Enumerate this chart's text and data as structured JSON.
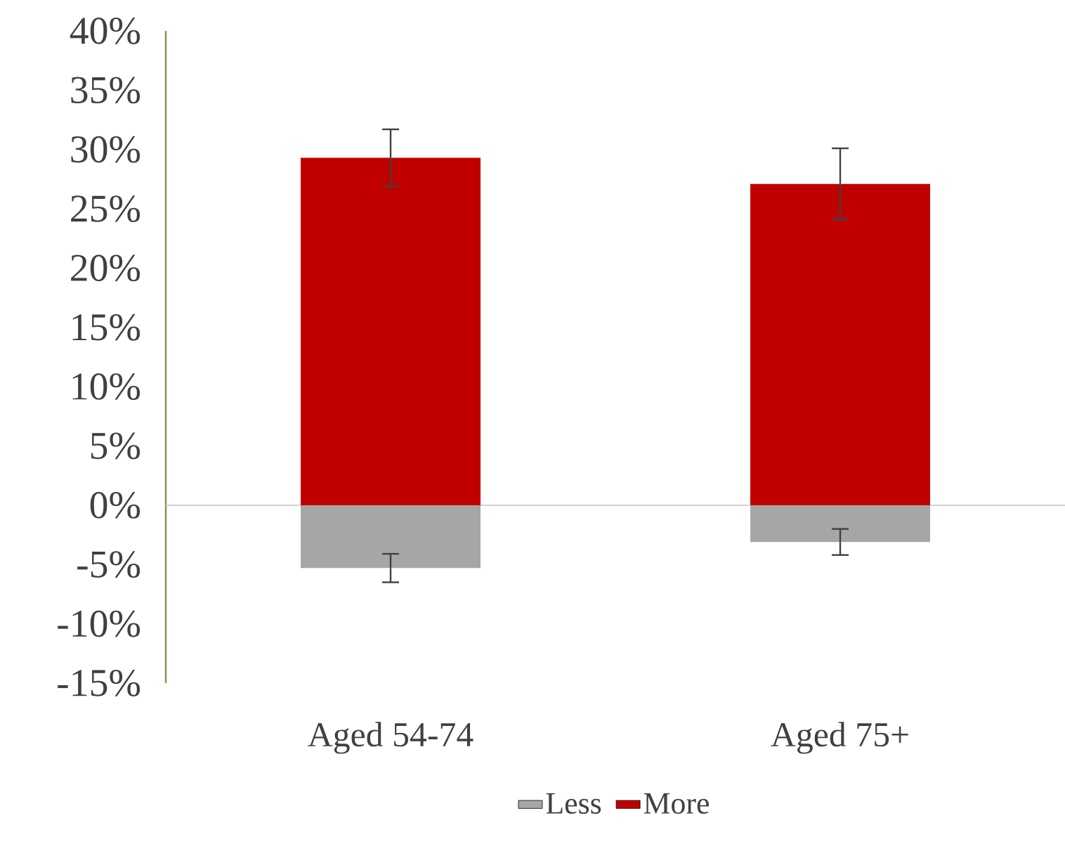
{
  "chart_data": {
    "type": "bar",
    "stacked": true,
    "categories": [
      "Aged 54-74",
      "Aged 75+"
    ],
    "series": [
      {
        "name": "Less",
        "color": "#a6a6a6",
        "values": [
          -5.3,
          -3.1
        ],
        "errors": [
          1.2,
          1.1
        ]
      },
      {
        "name": "More",
        "color": "#c00000",
        "values": [
          29.3,
          27.1
        ],
        "errors": [
          2.4,
          3.0
        ]
      }
    ],
    "ylim": [
      -15,
      40
    ],
    "yticks": [
      {
        "value": -15,
        "label": "-15%"
      },
      {
        "value": -10,
        "label": "-10%"
      },
      {
        "value": -5,
        "label": "-5%"
      },
      {
        "value": 0,
        "label": "0%"
      },
      {
        "value": 5,
        "label": "5%"
      },
      {
        "value": 10,
        "label": "10%"
      },
      {
        "value": 15,
        "label": "15%"
      },
      {
        "value": 20,
        "label": "20%"
      },
      {
        "value": 25,
        "label": "25%"
      },
      {
        "value": 30,
        "label": "30%"
      },
      {
        "value": 35,
        "label": "35%"
      },
      {
        "value": 40,
        "label": "40%"
      }
    ],
    "legend": "bottom"
  }
}
